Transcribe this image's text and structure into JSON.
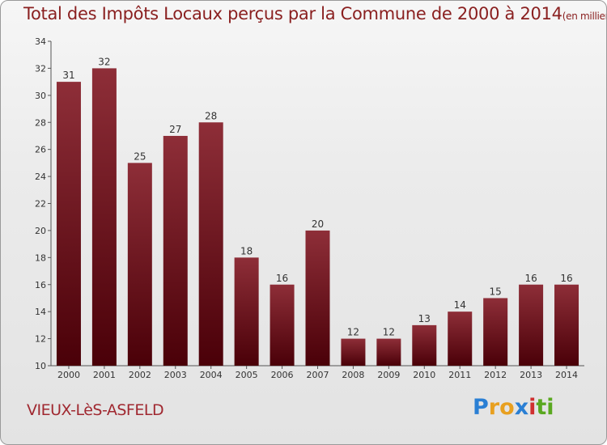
{
  "title": "Total des Impôts Locaux perçus par la Commune de 2000 à 2014",
  "unit": "(en milliers d'€)",
  "commune": "VIEUX-LèS-ASFELD",
  "logo": {
    "text": "Proxiti",
    "letters": [
      "P",
      "r",
      "o",
      "x",
      "i",
      "t",
      "i"
    ],
    "colors": [
      "#2a7fd4",
      "#e8a020",
      "#e8a020",
      "#2a7fd4",
      "#d03030",
      "#5aa820",
      "#5aa820"
    ]
  },
  "colors": {
    "bar_top": "#8e2e38",
    "bar_bottom": "#4a0008",
    "title": "#8a2020"
  },
  "chart_data": {
    "type": "bar",
    "title": "Total des Impôts Locaux perçus par la Commune de 2000 à 2014",
    "xlabel": "",
    "ylabel": "",
    "categories": [
      "2000",
      "2001",
      "2002",
      "2003",
      "2004",
      "2005",
      "2006",
      "2007",
      "2008",
      "2009",
      "2010",
      "2011",
      "2012",
      "2013",
      "2014"
    ],
    "values": [
      31,
      32,
      25,
      27,
      28,
      18,
      16,
      20,
      12,
      12,
      13,
      14,
      15,
      16,
      16
    ],
    "ylim": [
      10,
      34
    ],
    "yticks": [
      10,
      12,
      14,
      16,
      18,
      20,
      22,
      24,
      26,
      28,
      30,
      32,
      34
    ],
    "grid": false
  }
}
